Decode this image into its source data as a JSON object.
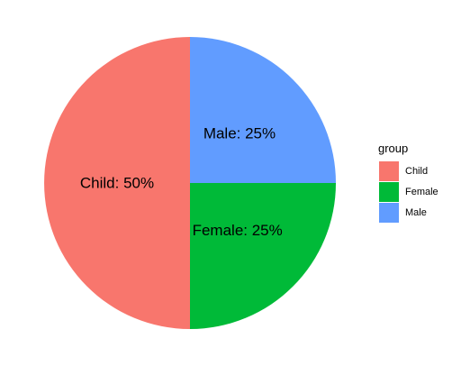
{
  "chart_data": {
    "type": "pie",
    "title": "",
    "categories": [
      "Child",
      "Female",
      "Male"
    ],
    "values": [
      50,
      25,
      25
    ],
    "colors": [
      "#F8766D",
      "#00BA38",
      "#619CFF"
    ],
    "slice_labels": [
      "Child: 50%",
      "Female: 25%",
      "Male: 25%"
    ],
    "legend": {
      "title": "group",
      "position": "right",
      "items": [
        "Child",
        "Female",
        "Male"
      ]
    }
  }
}
